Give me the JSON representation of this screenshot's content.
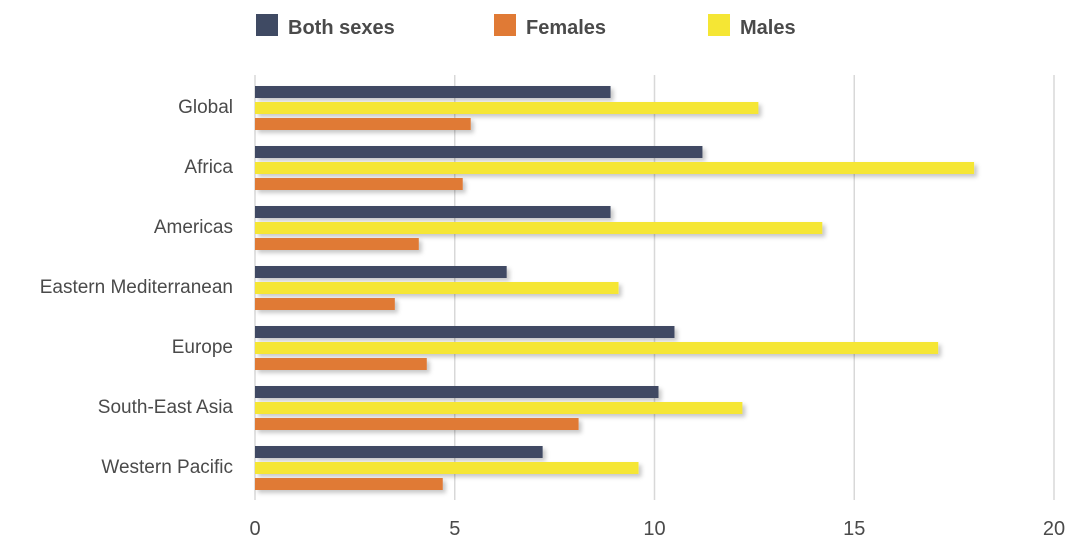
{
  "chart_data": {
    "type": "bar",
    "orientation": "horizontal",
    "title": "",
    "xlabel": "",
    "ylabel": "",
    "xlim": [
      0,
      20
    ],
    "ticks": [
      "0",
      "5",
      "10",
      "15",
      "20"
    ],
    "grid": true,
    "legend_position": "top",
    "categories": [
      "Global",
      "Africa",
      "Americas",
      "Eastern Mediterranean",
      "Europe",
      "South-East Asia",
      "Western Pacific"
    ],
    "series": [
      {
        "name": "Both sexes",
        "color": "#3f4a63",
        "values": [
          8.9,
          11.2,
          8.9,
          6.3,
          10.5,
          10.1,
          7.2
        ]
      },
      {
        "name": "Females",
        "color": "#e07a35",
        "values": [
          5.4,
          5.2,
          4.1,
          3.5,
          4.3,
          8.1,
          4.7
        ]
      },
      {
        "name": "Males",
        "color": "#f5e634",
        "values": [
          12.6,
          18.0,
          14.2,
          9.1,
          17.1,
          12.2,
          9.6
        ]
      }
    ],
    "draw_order": [
      "Both sexes",
      "Males",
      "Females"
    ]
  }
}
